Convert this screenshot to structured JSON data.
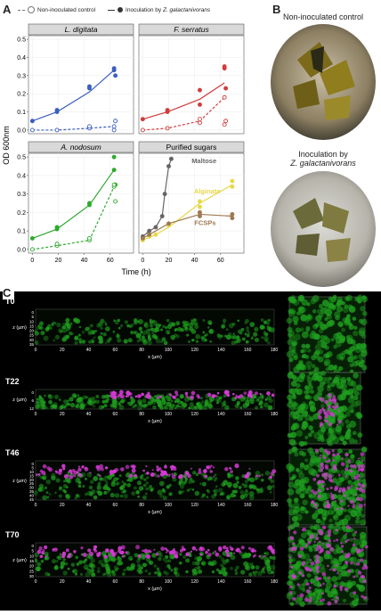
{
  "panels": {
    "a": "A",
    "b": "B",
    "c": "C"
  },
  "legend": {
    "non_inoculated": "Non-inoculated control",
    "inoculated_prefix": "Inoculation by ",
    "inoculated_species": "Z. galactanivorans"
  },
  "chart_data": [
    {
      "type": "scatter",
      "title": "L. digitata",
      "italic": true,
      "ylabel": "OD 600nm",
      "xlabel": "Time (h)",
      "xlim": [
        -3,
        78
      ],
      "ylim": [
        -0.02,
        0.52
      ],
      "x_ticks": [
        0,
        20,
        40,
        60
      ],
      "y_ticks": [
        0.0,
        0.1,
        0.2,
        0.3,
        0.4,
        0.5
      ],
      "color": "#3b5fc0",
      "series": [
        {
          "style": "solid",
          "points": [
            [
              0,
              0.05
            ],
            [
              19,
              0.1
            ],
            [
              19,
              0.11
            ],
            [
              44,
              0.23
            ],
            [
              44,
              0.24
            ],
            [
              63,
              0.33
            ],
            [
              63,
              0.34
            ],
            [
              64,
              0.3
            ]
          ],
          "line": [
            [
              0,
              0.05
            ],
            [
              19,
              0.1
            ],
            [
              44,
              0.21
            ],
            [
              63,
              0.33
            ]
          ]
        },
        {
          "style": "dashed",
          "points": [
            [
              0,
              0.0
            ],
            [
              19,
              0.0
            ],
            [
              44,
              0.01
            ],
            [
              44,
              0.02
            ],
            [
              63,
              0.0
            ],
            [
              63,
              0.02
            ],
            [
              64,
              0.05
            ]
          ],
          "line": [
            [
              0,
              0.0
            ],
            [
              19,
              0.0
            ],
            [
              44,
              0.01
            ],
            [
              63,
              0.02
            ]
          ]
        }
      ]
    },
    {
      "type": "scatter",
      "title": "F. serratus",
      "italic": true,
      "xlim": [
        -3,
        78
      ],
      "ylim": [
        -0.02,
        0.52
      ],
      "x_ticks": [
        0,
        20,
        40,
        60
      ],
      "color": "#d23c3c",
      "series": [
        {
          "style": "solid",
          "points": [
            [
              0,
              0.06
            ],
            [
              19,
              0.1
            ],
            [
              19,
              0.11
            ],
            [
              44,
              0.22
            ],
            [
              44,
              0.14
            ],
            [
              63,
              0.35
            ],
            [
              63,
              0.34
            ],
            [
              64,
              0.23
            ]
          ],
          "line": [
            [
              0,
              0.06
            ],
            [
              19,
              0.1
            ],
            [
              44,
              0.17
            ],
            [
              63,
              0.26
            ]
          ]
        },
        {
          "style": "dashed",
          "points": [
            [
              0,
              0.0
            ],
            [
              19,
              0.01
            ],
            [
              44,
              0.04
            ],
            [
              44,
              0.06
            ],
            [
              63,
              0.18
            ],
            [
              63,
              0.03
            ],
            [
              64,
              0.05
            ]
          ],
          "line": [
            [
              0,
              0.0
            ],
            [
              19,
              0.01
            ],
            [
              44,
              0.05
            ],
            [
              63,
              0.18
            ]
          ]
        }
      ]
    },
    {
      "type": "scatter",
      "title": "A. nodosum",
      "italic": true,
      "xlim": [
        -3,
        78
      ],
      "ylim": [
        -0.02,
        0.52
      ],
      "x_ticks": [
        0,
        20,
        40,
        60
      ],
      "y_ticks": [
        0.0,
        0.1,
        0.2,
        0.3,
        0.4,
        0.5
      ],
      "color": "#2eaa2e",
      "series": [
        {
          "style": "solid",
          "points": [
            [
              0,
              0.06
            ],
            [
              19,
              0.11
            ],
            [
              19,
              0.12
            ],
            [
              44,
              0.24
            ],
            [
              44,
              0.25
            ],
            [
              63,
              0.5
            ],
            [
              63,
              0.43
            ],
            [
              64,
              0.35
            ]
          ],
          "line": [
            [
              0,
              0.06
            ],
            [
              19,
              0.11
            ],
            [
              44,
              0.24
            ],
            [
              63,
              0.43
            ]
          ]
        },
        {
          "style": "dashed",
          "points": [
            [
              0,
              0.0
            ],
            [
              19,
              0.02
            ],
            [
              19,
              0.03
            ],
            [
              44,
              0.05
            ],
            [
              44,
              0.06
            ],
            [
              63,
              0.34
            ],
            [
              63,
              0.35
            ],
            [
              64,
              0.26
            ]
          ],
          "line": [
            [
              0,
              0.0
            ],
            [
              19,
              0.02
            ],
            [
              44,
              0.05
            ],
            [
              63,
              0.34
            ]
          ]
        }
      ]
    },
    {
      "type": "scatter",
      "title": "Purified sugars",
      "italic": false,
      "xlim": [
        -3,
        78
      ],
      "ylim": [
        -0.02,
        0.52
      ],
      "x_ticks": [
        0,
        20,
        40,
        60
      ],
      "series": [
        {
          "name": "Maltose",
          "color": "#666666",
          "points": [
            [
              0,
              0.07
            ],
            [
              5,
              0.1
            ],
            [
              10,
              0.12
            ],
            [
              15,
              0.18
            ],
            [
              17,
              0.3
            ],
            [
              20,
              0.45
            ],
            [
              22,
              0.49
            ]
          ],
          "line": [
            [
              0,
              0.07
            ],
            [
              5,
              0.1
            ],
            [
              10,
              0.12
            ],
            [
              15,
              0.18
            ],
            [
              17,
              0.3
            ],
            [
              20,
              0.45
            ],
            [
              22,
              0.49
            ]
          ]
        },
        {
          "name": "Alginate",
          "color": "#e6d84a",
          "points": [
            [
              0,
              0.05
            ],
            [
              5,
              0.07
            ],
            [
              10,
              0.08
            ],
            [
              20,
              0.13
            ],
            [
              44,
              0.26
            ],
            [
              44,
              0.23
            ],
            [
              69,
              0.37
            ],
            [
              69,
              0.34
            ]
          ],
          "line": [
            [
              0,
              0.05
            ],
            [
              10,
              0.08
            ],
            [
              20,
              0.12
            ],
            [
              44,
              0.25
            ],
            [
              69,
              0.35
            ]
          ]
        },
        {
          "name": "FCSPs",
          "color": "#a07850",
          "points": [
            [
              0,
              0.06
            ],
            [
              5,
              0.08
            ],
            [
              20,
              0.14
            ],
            [
              44,
              0.2
            ],
            [
              44,
              0.18
            ],
            [
              69,
              0.19
            ],
            [
              69,
              0.17
            ]
          ],
          "line": [
            [
              0,
              0.06
            ],
            [
              20,
              0.14
            ],
            [
              44,
              0.19
            ],
            [
              69,
              0.18
            ]
          ]
        }
      ],
      "annotations": [
        "Maltose",
        "Alginate",
        "FCSPs"
      ]
    }
  ],
  "panel_b": {
    "caption_top": "Non-inoculated control",
    "caption_bottom_line1": "Inoculation by",
    "caption_bottom_line2": "Z. galactanivorans"
  },
  "panel_c": {
    "rows": [
      {
        "label": "T0",
        "z_ticks": [
          "0",
          "5",
          "10",
          "15",
          "20",
          "25",
          "30",
          "35"
        ]
      },
      {
        "label": "T22",
        "z_ticks": [
          "0",
          "6",
          "12"
        ]
      },
      {
        "label": "T46",
        "z_ticks": [
          "0",
          "5",
          "10",
          "15",
          "20",
          "25",
          "30",
          "35",
          "40",
          "45"
        ]
      },
      {
        "label": "T70",
        "z_ticks": [
          "0",
          "5",
          "10",
          "15",
          "20",
          "25",
          "30"
        ]
      }
    ],
    "z_label": "z (µm)",
    "x_label": "x (µm)",
    "x_ticks": [
      "0",
      "20",
      "40",
      "60",
      "80",
      "100",
      "120",
      "140",
      "160",
      "180"
    ]
  },
  "colors": {
    "green": "#1fa01f",
    "magenta": "#d63ad6"
  }
}
